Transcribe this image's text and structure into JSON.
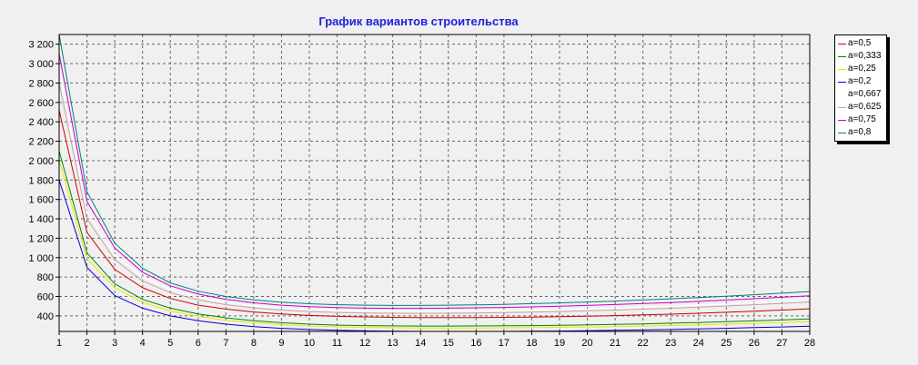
{
  "chart_data": {
    "type": "line",
    "title": "График вариантов строительства",
    "xlabel": "",
    "ylabel": "",
    "x": [
      1,
      2,
      3,
      4,
      5,
      6,
      7,
      8,
      9,
      10,
      11,
      12,
      13,
      14,
      15,
      16,
      17,
      18,
      19,
      20,
      21,
      22,
      23,
      24,
      25,
      26,
      27,
      28
    ],
    "xlim": [
      1,
      28
    ],
    "ylim": [
      240,
      3300
    ],
    "y_ticks": [
      400,
      600,
      800,
      1000,
      1200,
      1400,
      1600,
      1800,
      2000,
      2200,
      2400,
      2600,
      2800,
      3000,
      3200
    ],
    "y_tick_labels": [
      "400",
      "600",
      "800",
      "1 000",
      "1 200",
      "1 400",
      "1 600",
      "1 800",
      "2 000",
      "2 200",
      "2 400",
      "2 600",
      "2 800",
      "3 000",
      "3 200"
    ],
    "grid": true,
    "legend_position": "top-right",
    "series": [
      {
        "name": "a=0,5",
        "color": "#cc0000",
        "values": [
          2520,
          1260,
          880,
          690,
          580,
          510,
          470,
          440,
          420,
          405,
          395,
          390,
          385,
          383,
          382,
          383,
          385,
          388,
          392,
          397,
          403,
          410,
          418,
          427,
          437,
          448,
          460,
          473
        ]
      },
      {
        "name": "a=0,333",
        "color": "#008800",
        "values": [
          2100,
          1050,
          730,
          570,
          480,
          420,
          380,
          350,
          330,
          315,
          305,
          300,
          297,
          295,
          295,
          296,
          298,
          300,
          303,
          307,
          312,
          318,
          325,
          332,
          340,
          349,
          358,
          368
        ]
      },
      {
        "name": "a=0,25",
        "color": "#e8e800",
        "values": [
          2000,
          990,
          690,
          540,
          450,
          395,
          355,
          330,
          310,
          296,
          287,
          281,
          278,
          276,
          275,
          276,
          277,
          279,
          282,
          286,
          290,
          295,
          301,
          308,
          315,
          323,
          331,
          340
        ]
      },
      {
        "name": "a=0,2",
        "color": "#0000cc",
        "values": [
          1800,
          900,
          610,
          480,
          400,
          350,
          315,
          290,
          272,
          260,
          252,
          246,
          242,
          240,
          239,
          239,
          240,
          242,
          244,
          247,
          251,
          255,
          260,
          266,
          272,
          279,
          286,
          294
        ]
      },
      {
        "name": "a=0,667",
        "color": "#ffffff",
        "values": [
          2950,
          1470,
          1030,
          800,
          670,
          590,
          540,
          505,
          480,
          465,
          455,
          450,
          448,
          447,
          448,
          450,
          454,
          459,
          465,
          472,
          480,
          489,
          499,
          510,
          522,
          535,
          549,
          564
        ]
      },
      {
        "name": "a=0,625",
        "color": "#c8a0a0",
        "values": [
          2800,
          1400,
          980,
          760,
          640,
          565,
          515,
          482,
          460,
          445,
          436,
          430,
          427,
          426,
          427,
          430,
          434,
          439,
          445,
          452,
          460,
          469,
          479,
          490,
          502,
          515,
          529,
          544
        ]
      },
      {
        "name": "a=0,75",
        "color": "#cc00cc",
        "values": [
          3100,
          1580,
          1100,
          850,
          710,
          625,
          570,
          535,
          510,
          495,
          485,
          480,
          478,
          478,
          480,
          483,
          487,
          493,
          500,
          508,
          517,
          527,
          538,
          550,
          563,
          577,
          592,
          608
        ]
      },
      {
        "name": "a=0,8",
        "color": "#008080",
        "values": [
          3300,
          1680,
          1150,
          890,
          740,
          655,
          600,
          565,
          540,
          525,
          515,
          510,
          508,
          508,
          510,
          514,
          519,
          526,
          534,
          543,
          553,
          564,
          576,
          589,
          603,
          618,
          634,
          651
        ]
      }
    ]
  }
}
